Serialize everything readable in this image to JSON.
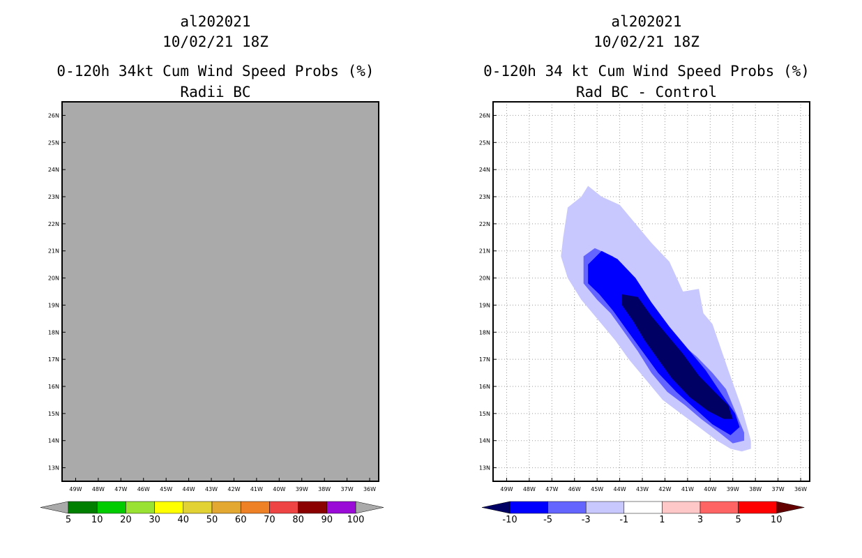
{
  "chart_data": [
    {
      "type": "heatmap",
      "title_lines": [
        "al202021",
        "10/02/21 18Z",
        "0-120h 34kt Cum Wind Speed Probs (%)",
        "Radii BC"
      ],
      "xlabel": "",
      "ylabel": "",
      "xlim": [
        -49.6,
        -35.6
      ],
      "ylim": [
        12.5,
        26.5
      ],
      "x_ticks": [
        -49,
        -48,
        -47,
        -46,
        -45,
        -44,
        -43,
        -42,
        -41,
        -40,
        -39,
        -38,
        -37,
        -36
      ],
      "x_tick_labels": [
        "49W",
        "48W",
        "47W",
        "46W",
        "45W",
        "44W",
        "43W",
        "42W",
        "41W",
        "40W",
        "39W",
        "38W",
        "37W",
        "36W"
      ],
      "y_ticks": [
        13,
        14,
        15,
        16,
        17,
        18,
        19,
        20,
        21,
        22,
        23,
        24,
        25,
        26
      ],
      "y_tick_labels": [
        "13N",
        "14N",
        "15N",
        "16N",
        "17N",
        "18N",
        "19N",
        "20N",
        "21N",
        "22N",
        "23N",
        "24N",
        "25N",
        "26N"
      ],
      "grid": false,
      "field": "no data (uniform missing-value fill)",
      "missing_color": "#aaaaaa",
      "colorbar": {
        "labels": [
          "5",
          "10",
          "20",
          "30",
          "40",
          "50",
          "60",
          "70",
          "80",
          "90",
          "100"
        ],
        "colors": [
          "#007f00",
          "#00cc00",
          "#99e233",
          "#ffff00",
          "#e2d233",
          "#e2a832",
          "#ee8026",
          "#ef4444",
          "#8b0000",
          "#9a0bd8"
        ],
        "under_color": "#aaaaaa",
        "over_color": "#aaaaaa"
      }
    },
    {
      "type": "heatmap",
      "title_lines": [
        "al202021",
        "10/02/21 18Z",
        "0-120h 34 kt Cum Wind Speed Probs (%)",
        "Rad BC - Control"
      ],
      "xlabel": "",
      "ylabel": "",
      "xlim": [
        -49.6,
        -35.6
      ],
      "ylim": [
        12.5,
        26.5
      ],
      "x_ticks": [
        -49,
        -48,
        -47,
        -46,
        -45,
        -44,
        -43,
        -42,
        -41,
        -40,
        -39,
        -38,
        -37,
        -36
      ],
      "x_tick_labels": [
        "49W",
        "48W",
        "47W",
        "46W",
        "45W",
        "44W",
        "43W",
        "42W",
        "41W",
        "40W",
        "39W",
        "38W",
        "37W",
        "36W"
      ],
      "y_ticks": [
        13,
        14,
        15,
        16,
        17,
        18,
        19,
        20,
        21,
        22,
        23,
        24,
        25,
        26
      ],
      "y_tick_labels": [
        "13N",
        "14N",
        "15N",
        "16N",
        "17N",
        "18N",
        "19N",
        "20N",
        "21N",
        "22N",
        "23N",
        "24N",
        "25N",
        "26N"
      ],
      "grid": true,
      "contours": [
        {
          "level": "-1 to -3",
          "color": "#c8c8ff",
          "points": [
            [
              -46.5,
              21.5
            ],
            [
              -46.3,
              22.6
            ],
            [
              -45.7,
              23.0
            ],
            [
              -45.4,
              23.4
            ],
            [
              -44.8,
              23.0
            ],
            [
              -44.0,
              22.7
            ],
            [
              -43.4,
              22.1
            ],
            [
              -42.6,
              21.3
            ],
            [
              -41.8,
              20.6
            ],
            [
              -41.2,
              19.5
            ],
            [
              -40.5,
              19.6
            ],
            [
              -40.3,
              18.7
            ],
            [
              -39.9,
              18.3
            ],
            [
              -39.2,
              16.6
            ],
            [
              -38.6,
              15.2
            ],
            [
              -38.2,
              14.0
            ],
            [
              -38.2,
              13.7
            ],
            [
              -38.6,
              13.6
            ],
            [
              -39.1,
              13.7
            ],
            [
              -39.7,
              14.0
            ],
            [
              -40.5,
              14.5
            ],
            [
              -41.3,
              15.0
            ],
            [
              -42.1,
              15.5
            ],
            [
              -42.9,
              16.3
            ],
            [
              -43.6,
              17.0
            ],
            [
              -44.2,
              17.7
            ],
            [
              -44.8,
              18.3
            ],
            [
              -45.7,
              19.2
            ],
            [
              -46.3,
              20.0
            ],
            [
              -46.6,
              20.8
            ]
          ]
        },
        {
          "level": "-3 to -5",
          "color": "#6464ff",
          "points": [
            [
              -45.6,
              20.8
            ],
            [
              -45.1,
              21.1
            ],
            [
              -44.3,
              20.8
            ],
            [
              -43.6,
              20.2
            ],
            [
              -42.9,
              19.4
            ],
            [
              -42.1,
              18.5
            ],
            [
              -41.3,
              17.6
            ],
            [
              -40.6,
              17.1
            ],
            [
              -39.9,
              16.5
            ],
            [
              -39.3,
              15.9
            ],
            [
              -38.9,
              15.1
            ],
            [
              -38.5,
              14.3
            ],
            [
              -38.5,
              14.0
            ],
            [
              -39.0,
              13.9
            ],
            [
              -39.6,
              14.3
            ],
            [
              -40.4,
              14.8
            ],
            [
              -41.1,
              15.3
            ],
            [
              -41.9,
              15.8
            ],
            [
              -42.6,
              16.5
            ],
            [
              -43.2,
              17.3
            ],
            [
              -43.8,
              18.0
            ],
            [
              -44.4,
              18.7
            ],
            [
              -45.0,
              19.2
            ],
            [
              -45.6,
              19.8
            ]
          ]
        },
        {
          "level": "-5 to -10",
          "color": "#0000ff",
          "points": [
            [
              -45.4,
              20.5
            ],
            [
              -44.8,
              21.0
            ],
            [
              -44.1,
              20.7
            ],
            [
              -43.3,
              20.0
            ],
            [
              -42.6,
              19.1
            ],
            [
              -41.8,
              18.2
            ],
            [
              -41.0,
              17.4
            ],
            [
              -40.2,
              16.6
            ],
            [
              -39.4,
              15.6
            ],
            [
              -38.9,
              15.0
            ],
            [
              -38.7,
              14.5
            ],
            [
              -39.1,
              14.2
            ],
            [
              -39.9,
              14.6
            ],
            [
              -40.7,
              15.2
            ],
            [
              -41.5,
              15.8
            ],
            [
              -42.3,
              16.5
            ],
            [
              -43.0,
              17.3
            ],
            [
              -43.7,
              18.1
            ],
            [
              -44.3,
              18.8
            ],
            [
              -44.9,
              19.4
            ],
            [
              -45.4,
              19.8
            ]
          ]
        },
        {
          "level": "< -10",
          "color": "#000064",
          "points": [
            [
              -43.9,
              19.4
            ],
            [
              -43.2,
              19.3
            ],
            [
              -42.6,
              18.6
            ],
            [
              -41.9,
              17.9
            ],
            [
              -41.2,
              17.2
            ],
            [
              -40.5,
              16.4
            ],
            [
              -39.8,
              15.8
            ],
            [
              -39.2,
              15.3
            ],
            [
              -39.0,
              14.8
            ],
            [
              -39.4,
              14.8
            ],
            [
              -40.1,
              15.1
            ],
            [
              -40.9,
              15.6
            ],
            [
              -41.7,
              16.3
            ],
            [
              -42.3,
              17.0
            ],
            [
              -42.9,
              17.7
            ],
            [
              -43.4,
              18.4
            ],
            [
              -43.9,
              19.0
            ]
          ]
        }
      ],
      "colorbar": {
        "labels": [
          "-10",
          "-5",
          "-3",
          "-1",
          "1",
          "3",
          "5",
          "10"
        ],
        "colors": [
          "#0000ff",
          "#6464ff",
          "#c8c8ff",
          "#ffffff",
          "#ffc8c8",
          "#ff6464",
          "#ff0000"
        ],
        "under_color": "#000064",
        "over_color": "#640000"
      }
    }
  ]
}
